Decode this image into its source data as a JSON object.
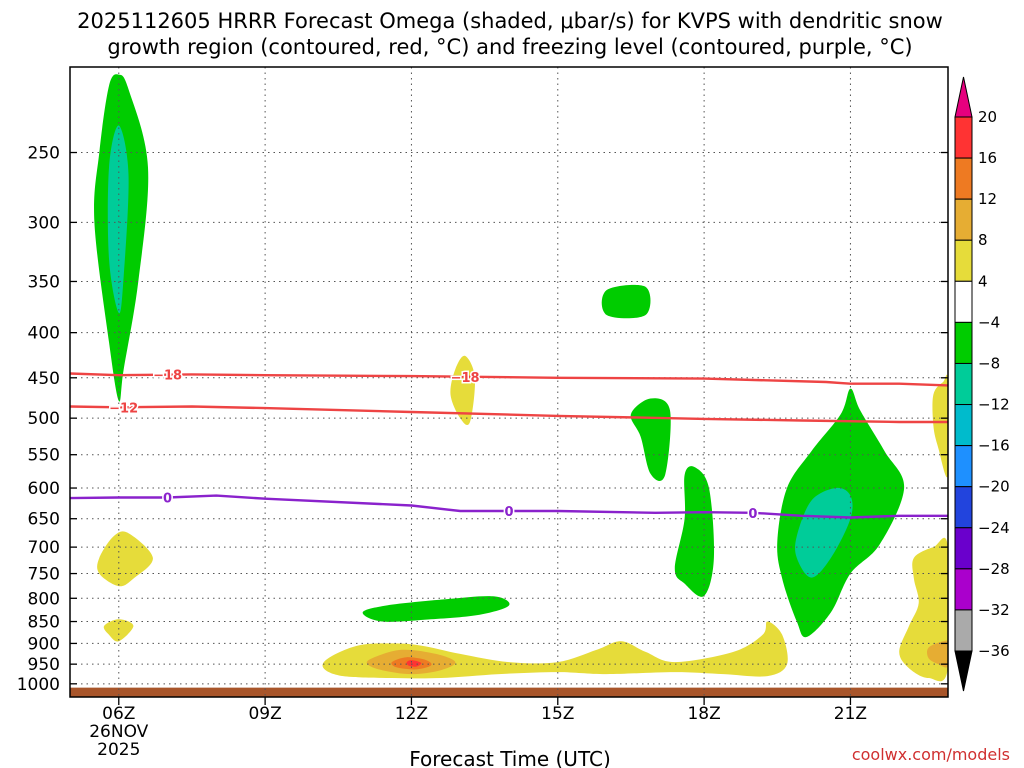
{
  "title_line1": "2025112605 HRRR Forecast Omega (shaded, μbar/s) for KVPS with dendritic snow",
  "title_line2": "growth region (contoured, red, °C) and freezing level (contoured, purple, °C)",
  "xlabel": "Forecast Time (UTC)",
  "credit": "coolwx.com/models",
  "chart_data": {
    "type": "heatmap",
    "x_unit": "forecast hour (UTC), 2025-11-26",
    "y_unit": "pressure (mb)",
    "xlim": [
      5.0,
      23.0
    ],
    "ylim": [
      1035,
      200
    ],
    "y_scale": "log",
    "grid": true,
    "y_ticks": [
      250,
      300,
      350,
      400,
      450,
      500,
      550,
      600,
      650,
      700,
      750,
      800,
      850,
      900,
      950,
      1000
    ],
    "y_tick_labels": [
      "250",
      "300",
      "350",
      "400",
      "450",
      "500",
      "550",
      "600",
      "650",
      "700",
      "750",
      "800",
      "850",
      "900",
      "950",
      "1000"
    ],
    "x_ticks": [
      {
        "x": 6,
        "label": "06Z",
        "sub1": "26NOV",
        "sub2": "2025"
      },
      {
        "x": 9,
        "label": "09Z"
      },
      {
        "x": 12,
        "label": "12Z"
      },
      {
        "x": 15,
        "label": "15Z"
      },
      {
        "x": 18,
        "label": "18Z"
      },
      {
        "x": 21,
        "label": "21Z"
      }
    ],
    "colorbar": {
      "levels": [
        20,
        16,
        12,
        8,
        4,
        -4,
        -8,
        -12,
        -16,
        -20,
        -24,
        -28,
        -32,
        -36
      ],
      "labels": [
        "20",
        "16",
        "12",
        "8",
        "4",
        "−4",
        "−8",
        "−12",
        "−16",
        "−20",
        "−24",
        "−28",
        "−32",
        "−36"
      ],
      "colors": [
        "#ff3333",
        "#ee7a22",
        "#e6ad33",
        "#e6dc3a",
        "#ffffff",
        "#00cc00",
        "#00cc99",
        "#00bbcc",
        "#1e90ff",
        "#2244dd",
        "#6a00cc",
        "#aa00cc",
        "#aaaaaa"
      ],
      "top_triangle_color": "#e6007e",
      "bottom_triangle_color": "#000000"
    },
    "omega_regions": [
      {
        "color": "#00cc00",
        "points": [
          [
            5.6,
            250
          ],
          [
            5.8,
            210
          ],
          [
            6.0,
            204
          ],
          [
            6.2,
            212
          ],
          [
            6.6,
            260
          ],
          [
            6.4,
            350
          ],
          [
            6.1,
            440
          ],
          [
            6.0,
            478
          ],
          [
            5.8,
            410
          ],
          [
            5.5,
            300
          ]
        ]
      },
      {
        "color": "#00cc99",
        "points": [
          [
            5.8,
            260
          ],
          [
            6.0,
            233
          ],
          [
            6.2,
            265
          ],
          [
            6.1,
            345
          ],
          [
            6.0,
            380
          ],
          [
            5.8,
            330
          ]
        ]
      },
      {
        "color": "#00cc00",
        "points": [
          [
            16.0,
            358
          ],
          [
            16.8,
            355
          ],
          [
            16.8,
            382
          ],
          [
            16.0,
            382
          ]
        ]
      },
      {
        "color": "#00cc00",
        "points": [
          [
            16.5,
            495
          ],
          [
            16.9,
            475
          ],
          [
            17.3,
            490
          ],
          [
            17.2,
            580
          ],
          [
            16.9,
            578
          ],
          [
            16.7,
            525
          ]
        ]
      },
      {
        "color": "#00cc00",
        "points": [
          [
            17.6,
            580
          ],
          [
            17.8,
            568
          ],
          [
            18.1,
            600
          ],
          [
            18.2,
            720
          ],
          [
            18.0,
            795
          ],
          [
            17.6,
            770
          ],
          [
            17.4,
            740
          ],
          [
            17.6,
            650
          ]
        ]
      },
      {
        "color": "#00cc00",
        "points": [
          [
            19.7,
            600
          ],
          [
            20.2,
            545
          ],
          [
            20.8,
            495
          ],
          [
            21.0,
            463
          ],
          [
            21.2,
            490
          ],
          [
            21.7,
            545
          ],
          [
            22.1,
            600
          ],
          [
            21.6,
            695
          ],
          [
            21.0,
            750
          ],
          [
            20.6,
            830
          ],
          [
            20.1,
            885
          ],
          [
            19.9,
            850
          ],
          [
            19.6,
            760
          ],
          [
            19.5,
            690
          ]
        ]
      },
      {
        "color": "#00cc99",
        "points": [
          [
            19.9,
            680
          ],
          [
            20.2,
            620
          ],
          [
            20.7,
            600
          ],
          [
            21.0,
            612
          ],
          [
            21.0,
            650
          ],
          [
            20.6,
            720
          ],
          [
            20.2,
            758
          ],
          [
            19.9,
            720
          ]
        ]
      },
      {
        "color": "#00cc00",
        "points": [
          [
            11.0,
            830
          ],
          [
            11.5,
            815
          ],
          [
            12.7,
            802
          ],
          [
            13.7,
            796
          ],
          [
            14.0,
            815
          ],
          [
            13.4,
            835
          ],
          [
            12.4,
            845
          ],
          [
            11.4,
            850
          ]
        ]
      },
      {
        "color": "#e6dc3a",
        "points": [
          [
            13.1,
            425
          ],
          [
            13.3,
            450
          ],
          [
            13.2,
            505
          ],
          [
            13.0,
            500
          ],
          [
            12.8,
            470
          ],
          [
            12.9,
            440
          ]
        ]
      },
      {
        "color": "#e6dc3a",
        "points": [
          [
            5.6,
            720
          ],
          [
            5.9,
            680
          ],
          [
            6.2,
            675
          ],
          [
            6.7,
            720
          ],
          [
            6.3,
            760
          ],
          [
            6.0,
            775
          ],
          [
            5.6,
            750
          ]
        ]
      },
      {
        "color": "#e6dc3a",
        "points": [
          [
            5.7,
            860
          ],
          [
            6.0,
            845
          ],
          [
            6.3,
            860
          ],
          [
            6.0,
            895
          ],
          [
            5.8,
            880
          ]
        ]
      },
      {
        "color": "#e6dc3a",
        "points": [
          [
            10.3,
            935
          ],
          [
            10.9,
            905
          ],
          [
            11.6,
            900
          ],
          [
            12.2,
            905
          ],
          [
            13.0,
            925
          ],
          [
            14.0,
            945
          ],
          [
            15.0,
            945
          ],
          [
            15.8,
            915
          ],
          [
            16.3,
            895
          ],
          [
            16.8,
            920
          ],
          [
            17.4,
            945
          ],
          [
            18.6,
            920
          ],
          [
            19.2,
            880
          ],
          [
            19.3,
            850
          ],
          [
            19.6,
            880
          ],
          [
            19.7,
            950
          ],
          [
            19.3,
            980
          ],
          [
            18.4,
            975
          ],
          [
            17.4,
            970
          ],
          [
            16.0,
            975
          ],
          [
            15.0,
            970
          ],
          [
            13.8,
            975
          ],
          [
            12.6,
            985
          ],
          [
            11.6,
            985
          ],
          [
            10.6,
            980
          ],
          [
            10.2,
            960
          ]
        ]
      },
      {
        "color": "#e6ad33",
        "points": [
          [
            11.2,
            935
          ],
          [
            11.8,
            915
          ],
          [
            12.5,
            925
          ],
          [
            12.9,
            945
          ],
          [
            12.6,
            965
          ],
          [
            12.0,
            975
          ],
          [
            11.4,
            965
          ],
          [
            11.1,
            950
          ]
        ]
      },
      {
        "color": "#ee7a22",
        "points": [
          [
            11.6,
            945
          ],
          [
            11.9,
            933
          ],
          [
            12.3,
            940
          ],
          [
            12.4,
            953
          ],
          [
            12.1,
            963
          ],
          [
            11.7,
            958
          ]
        ]
      },
      {
        "color": "#ff3333",
        "points": [
          [
            11.9,
            946
          ],
          [
            12.0,
            940
          ],
          [
            12.2,
            947
          ],
          [
            12.1,
            956
          ],
          [
            11.95,
            954
          ]
        ]
      },
      {
        "color": "#e6dc3a",
        "points": [
          [
            22.3,
            720
          ],
          [
            22.7,
            700
          ],
          [
            23.0,
            700
          ],
          [
            23.0,
            960
          ],
          [
            22.6,
            985
          ],
          [
            22.2,
            960
          ],
          [
            22.0,
            920
          ],
          [
            22.2,
            860
          ],
          [
            22.4,
            810
          ],
          [
            22.3,
            760
          ]
        ]
      },
      {
        "color": "#e6ad33",
        "points": [
          [
            22.6,
            910
          ],
          [
            22.9,
            895
          ],
          [
            23.0,
            900
          ],
          [
            23.0,
            955
          ],
          [
            22.8,
            950
          ],
          [
            22.6,
            935
          ]
        ]
      },
      {
        "color": "#e6dc3a",
        "points": [
          [
            22.7,
            470
          ],
          [
            22.9,
            455
          ],
          [
            23.0,
            455
          ],
          [
            23.0,
            580
          ],
          [
            22.8,
            540
          ],
          [
            22.7,
            510
          ]
        ]
      }
    ],
    "contours": [
      {
        "name": "-18",
        "label": "−18",
        "color": "#ee4444",
        "points": [
          [
            5.0,
            445
          ],
          [
            6.0,
            447
          ],
          [
            7.5,
            446
          ],
          [
            9.0,
            447
          ],
          [
            12.0,
            448
          ],
          [
            15.0,
            450
          ],
          [
            18.0,
            451
          ],
          [
            20.5,
            455
          ],
          [
            21.0,
            457
          ],
          [
            22.0,
            457
          ],
          [
            23.0,
            459
          ]
        ],
        "label_positions": [
          [
            7.0,
            446
          ],
          [
            13.1,
            449
          ]
        ]
      },
      {
        "name": "-12",
        "label": "−12",
        "color": "#ee4444",
        "points": [
          [
            5.0,
            485
          ],
          [
            6.0,
            486
          ],
          [
            7.5,
            485
          ],
          [
            9.0,
            487
          ],
          [
            12.0,
            492
          ],
          [
            15.0,
            497
          ],
          [
            18.0,
            501
          ],
          [
            20.0,
            503
          ],
          [
            22.0,
            505
          ],
          [
            23.0,
            505
          ]
        ],
        "label_positions": [
          [
            6.1,
            486
          ]
        ]
      },
      {
        "name": "0",
        "label": "0",
        "color": "#8a22cc",
        "points": [
          [
            5.0,
            616
          ],
          [
            6.0,
            615
          ],
          [
            7.0,
            615
          ],
          [
            8.0,
            612
          ],
          [
            9.0,
            617
          ],
          [
            12.0,
            628
          ],
          [
            13.0,
            637
          ],
          [
            15.0,
            637
          ],
          [
            17.0,
            640
          ],
          [
            18.0,
            639
          ],
          [
            19.0,
            640
          ],
          [
            20.0,
            645
          ],
          [
            21.0,
            648
          ],
          [
            22.0,
            645
          ],
          [
            23.0,
            645
          ]
        ],
        "label_positions": [
          [
            7.0,
            615
          ],
          [
            14.0,
            637
          ],
          [
            19.0,
            640
          ]
        ]
      }
    ],
    "surface_band": {
      "color": "#a8552a",
      "top": 1010
    }
  }
}
